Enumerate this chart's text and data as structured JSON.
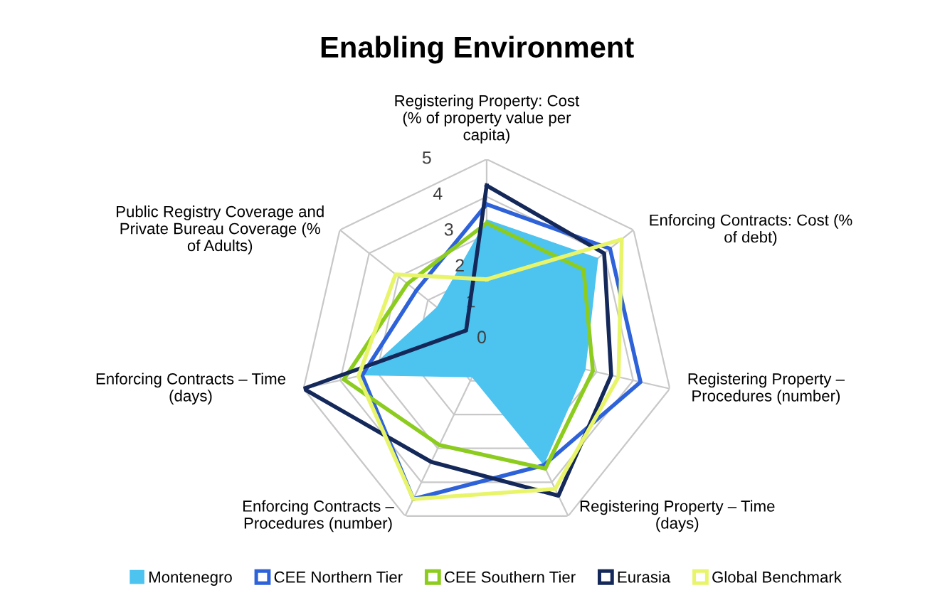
{
  "chart_data": {
    "type": "radar",
    "title": "Enabling Environment",
    "categories": [
      "Registering Property: Cost\n(% of property value per\ncapita)",
      "Enforcing Contracts: Cost (%\nof debt)",
      "Registering Property –\nProcedures (number)",
      "Registering Property – Time\n(days)",
      "Enforcing Contracts –\nProcedures (number)",
      "Enforcing Contracts – Time\n(days)",
      "Public Registry Coverage and\nPrivate Bureau Coverage (%\nof Adults)"
    ],
    "ylim": [
      0,
      5
    ],
    "yticks": [
      0,
      1,
      2,
      3,
      4,
      5
    ],
    "grid": true,
    "legend": "bottom",
    "series": [
      {
        "name": "Montenegro",
        "type": "area",
        "color": "#4dc3f0",
        "values": [
          3.4,
          3.8,
          2.7,
          3.5,
          0.9,
          3.4,
          1.7
        ]
      },
      {
        "name": "CEE Northern Tier",
        "color": "#2e62d9",
        "values": [
          3.8,
          4.2,
          4.2,
          3.5,
          4.5,
          3.4,
          2.4
        ]
      },
      {
        "name": "CEE Southern Tier",
        "color": "#8ccc1e",
        "values": [
          3.3,
          3.3,
          2.9,
          3.6,
          2.9,
          3.9,
          2.7
        ]
      },
      {
        "name": "Eurasia",
        "color": "#14285a",
        "values": [
          4.3,
          4.0,
          3.4,
          4.4,
          3.4,
          5.0,
          0.7
        ]
      },
      {
        "name": "Global Benchmark",
        "color": "#e8f56a",
        "values": [
          1.8,
          4.6,
          3.6,
          4.2,
          4.5,
          3.5,
          3.1
        ]
      }
    ]
  }
}
